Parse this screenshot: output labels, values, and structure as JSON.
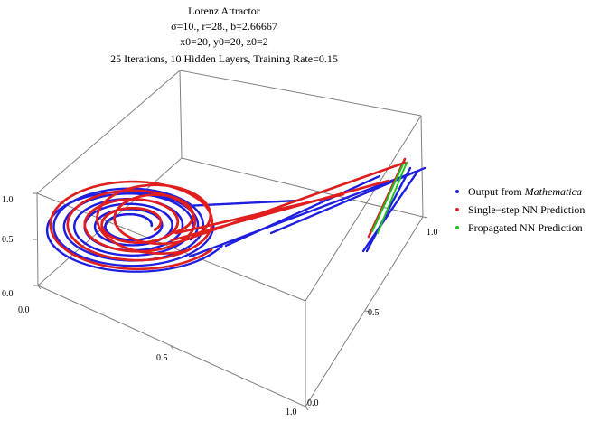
{
  "chart_data": {
    "type": "scatter",
    "title": "Lorenz Attractor",
    "subtitle_params": "σ=10., r=28., b=2.66667",
    "subtitle_initial": "x0=20, y0=20, z0=2",
    "subtitle_training": "25 Iterations, 10 Hidden Layers, Training Rate=0.15",
    "axes": {
      "x_ticks": [
        "0.0",
        "0.5",
        "1.0"
      ],
      "y_ticks": [
        "0.5",
        "1.0"
      ],
      "z_ticks": [
        "0.0",
        "0.5",
        "1.0"
      ],
      "x_range": [
        0,
        1
      ],
      "y_range": [
        0,
        1
      ],
      "z_range": [
        0,
        1
      ]
    },
    "legend_placement": "right",
    "series": [
      {
        "name_prefix": "Output from ",
        "name_emphasis": "Mathematica",
        "color": "#1f1fe0"
      },
      {
        "name": "Single−step NN Prediction",
        "color": "#e01f1f"
      },
      {
        "name": "Propagated NN Prediction",
        "color": "#1fbf1f"
      }
    ]
  }
}
